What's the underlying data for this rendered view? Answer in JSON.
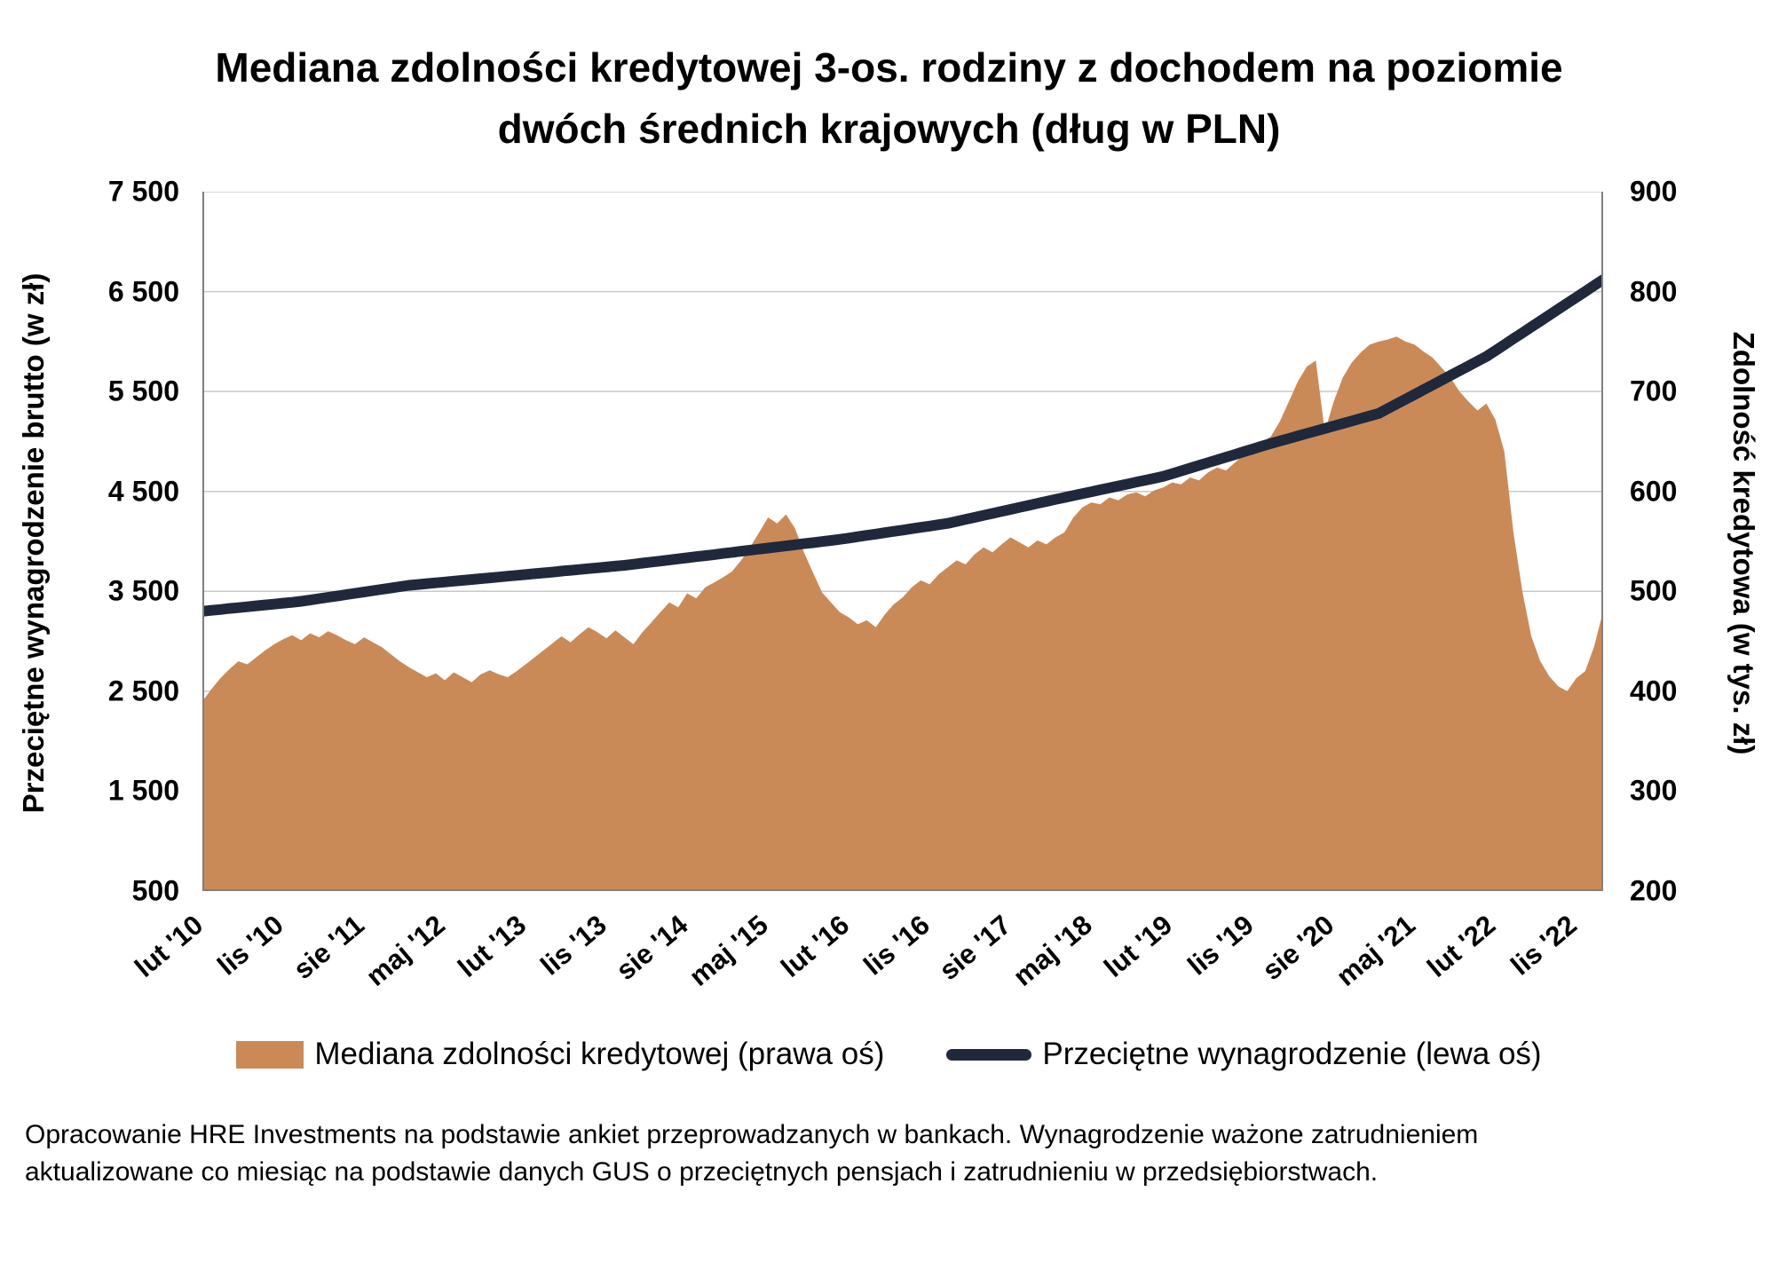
{
  "title": {
    "line1": "Mediana zdolności kredytowej 3-os. rodziny z dochodem na poziomie",
    "line2": "dwóch średnich krajowych (dług w PLN)"
  },
  "legend": {
    "area_label": "Mediana zdolności kredytowej (prawa oś)",
    "line_label": "Przeciętne wynagrodzenie (lewa oś)"
  },
  "footer": "Opracowanie HRE Investments na podstawie ankiet przeprowadzanych w bankach. Wynagrodzenie ważone zatrudnieniem aktualizowane co miesiąc na podstawie danych GUS o przeciętnych pensjach i zatrudnieniu w przedsiębiorstwach.",
  "chart_data": {
    "type": "area",
    "subtype": "monthly area series (right axis) + line series (left axis), Feb 2010 - Feb 2023",
    "grid": true,
    "colors": {
      "area": "#CA8A58",
      "line": "#20283C",
      "grid": "#C8C8C8",
      "axis": "#7F7F7F"
    },
    "left_axis": {
      "title": "Przeciętne wynagrodzenie brutto (w zł)",
      "min": 500,
      "max": 7500,
      "ticks": [
        {
          "value": 7500,
          "label": "7 500"
        },
        {
          "value": 6500,
          "label": "6 500"
        },
        {
          "value": 5500,
          "label": "5 500"
        },
        {
          "value": 4500,
          "label": "4 500"
        },
        {
          "value": 3500,
          "label": "3 500"
        },
        {
          "value": 2500,
          "label": "2 500"
        },
        {
          "value": 1500,
          "label": "1 500"
        },
        {
          "value": 500,
          "label": "500"
        }
      ]
    },
    "right_axis": {
      "title": "Zdolność kredytowa (w tys. zł)",
      "min": 200,
      "max": 900,
      "ticks": [
        {
          "value": 900,
          "label": "900"
        },
        {
          "value": 800,
          "label": "800"
        },
        {
          "value": 700,
          "label": "700"
        },
        {
          "value": 600,
          "label": "600"
        },
        {
          "value": 500,
          "label": "500"
        },
        {
          "value": 400,
          "label": "400"
        },
        {
          "value": 300,
          "label": "300"
        },
        {
          "value": 200,
          "label": "200"
        }
      ]
    },
    "x_axis": {
      "tick_labels": [
        {
          "index": 0,
          "label": "lut '10"
        },
        {
          "index": 9,
          "label": "lis '10"
        },
        {
          "index": 18,
          "label": "sie '11"
        },
        {
          "index": 27,
          "label": "maj '12"
        },
        {
          "index": 36,
          "label": "lut '13"
        },
        {
          "index": 45,
          "label": "lis '13"
        },
        {
          "index": 54,
          "label": "sie '14"
        },
        {
          "index": 63,
          "label": "maj '15"
        },
        {
          "index": 72,
          "label": "lut '16"
        },
        {
          "index": 81,
          "label": "lis '16"
        },
        {
          "index": 90,
          "label": "sie '17"
        },
        {
          "index": 99,
          "label": "maj '18"
        },
        {
          "index": 108,
          "label": "lut '19"
        },
        {
          "index": 117,
          "label": "lis '19"
        },
        {
          "index": 126,
          "label": "sie '20"
        },
        {
          "index": 135,
          "label": "maj '21"
        },
        {
          "index": 144,
          "label": "lut '22"
        },
        {
          "index": 153,
          "label": "lis '22"
        }
      ]
    },
    "series": [
      {
        "name": "Mediana zdolności kredytowej (prawa oś)",
        "type": "area",
        "axis": "right",
        "color": "#CA8A58",
        "unit": "tys. zł",
        "values": [
          390,
          402,
          413,
          422,
          430,
          427,
          434,
          441,
          447,
          452,
          456,
          451,
          458,
          454,
          460,
          456,
          451,
          447,
          454,
          449,
          444,
          437,
          430,
          424,
          419,
          414,
          418,
          411,
          419,
          414,
          409,
          417,
          421,
          417,
          414,
          420,
          427,
          434,
          441,
          448,
          455,
          449,
          457,
          464,
          459,
          453,
          461,
          454,
          447,
          459,
          469,
          479,
          489,
          484,
          498,
          493,
          504,
          509,
          514,
          520,
          531,
          544,
          559,
          574,
          568,
          577,
          563,
          539,
          519,
          499,
          489,
          479,
          474,
          467,
          471,
          464,
          477,
          487,
          494,
          504,
          511,
          507,
          517,
          524,
          531,
          527,
          537,
          544,
          539,
          547,
          554,
          549,
          544,
          551,
          547,
          554,
          559,
          574,
          584,
          589,
          587,
          594,
          591,
          597,
          599,
          595,
          601,
          604,
          609,
          607,
          614,
          611,
          619,
          624,
          621,
          629,
          637,
          641,
          649,
          655,
          670,
          690,
          710,
          725,
          731,
          660,
          690,
          714,
          729,
          739,
          747,
          750,
          752,
          755,
          750,
          747,
          740,
          734,
          724,
          714,
          700,
          690,
          681,
          688,
          672,
          640,
          560,
          500,
          455,
          430,
          415,
          405,
          400,
          413,
          420,
          445,
          480
        ]
      },
      {
        "name": "Przeciętne wynagrodzenie (lewa oś)",
        "type": "line",
        "axis": "left",
        "color": "#20283C",
        "unit": "zł",
        "values": [
          3300,
          3310,
          3318,
          3328,
          3336,
          3345,
          3355,
          3364,
          3372,
          3382,
          3390,
          3400,
          3413,
          3427,
          3440,
          3453,
          3467,
          3480,
          3493,
          3507,
          3520,
          3533,
          3547,
          3560,
          3568,
          3577,
          3585,
          3593,
          3602,
          3610,
          3618,
          3627,
          3635,
          3643,
          3652,
          3660,
          3668,
          3677,
          3685,
          3693,
          3702,
          3710,
          3718,
          3727,
          3735,
          3743,
          3752,
          3760,
          3771,
          3782,
          3793,
          3803,
          3814,
          3825,
          3836,
          3847,
          3857,
          3868,
          3879,
          3890,
          3901,
          3912,
          3923,
          3933,
          3944,
          3955,
          3966,
          3977,
          3987,
          3998,
          4009,
          4020,
          4033,
          4047,
          4060,
          4073,
          4087,
          4100,
          4113,
          4127,
          4140,
          4153,
          4167,
          4180,
          4200,
          4220,
          4240,
          4260,
          4280,
          4300,
          4320,
          4340,
          4360,
          4380,
          4400,
          4420,
          4439,
          4458,
          4478,
          4497,
          4516,
          4535,
          4554,
          4573,
          4593,
          4612,
          4631,
          4650,
          4678,
          4705,
          4733,
          4760,
          4788,
          4815,
          4843,
          4870,
          4898,
          4925,
          4953,
          4980,
          5005,
          5030,
          5055,
          5080,
          5105,
          5130,
          5155,
          5180,
          5205,
          5230,
          5255,
          5280,
          5328,
          5375,
          5423,
          5470,
          5518,
          5565,
          5613,
          5660,
          5708,
          5755,
          5803,
          5850,
          5909,
          5968,
          6028,
          6087,
          6146,
          6205,
          6264,
          6324,
          6383,
          6442,
          6501,
          6561,
          6620
        ]
      }
    ]
  }
}
